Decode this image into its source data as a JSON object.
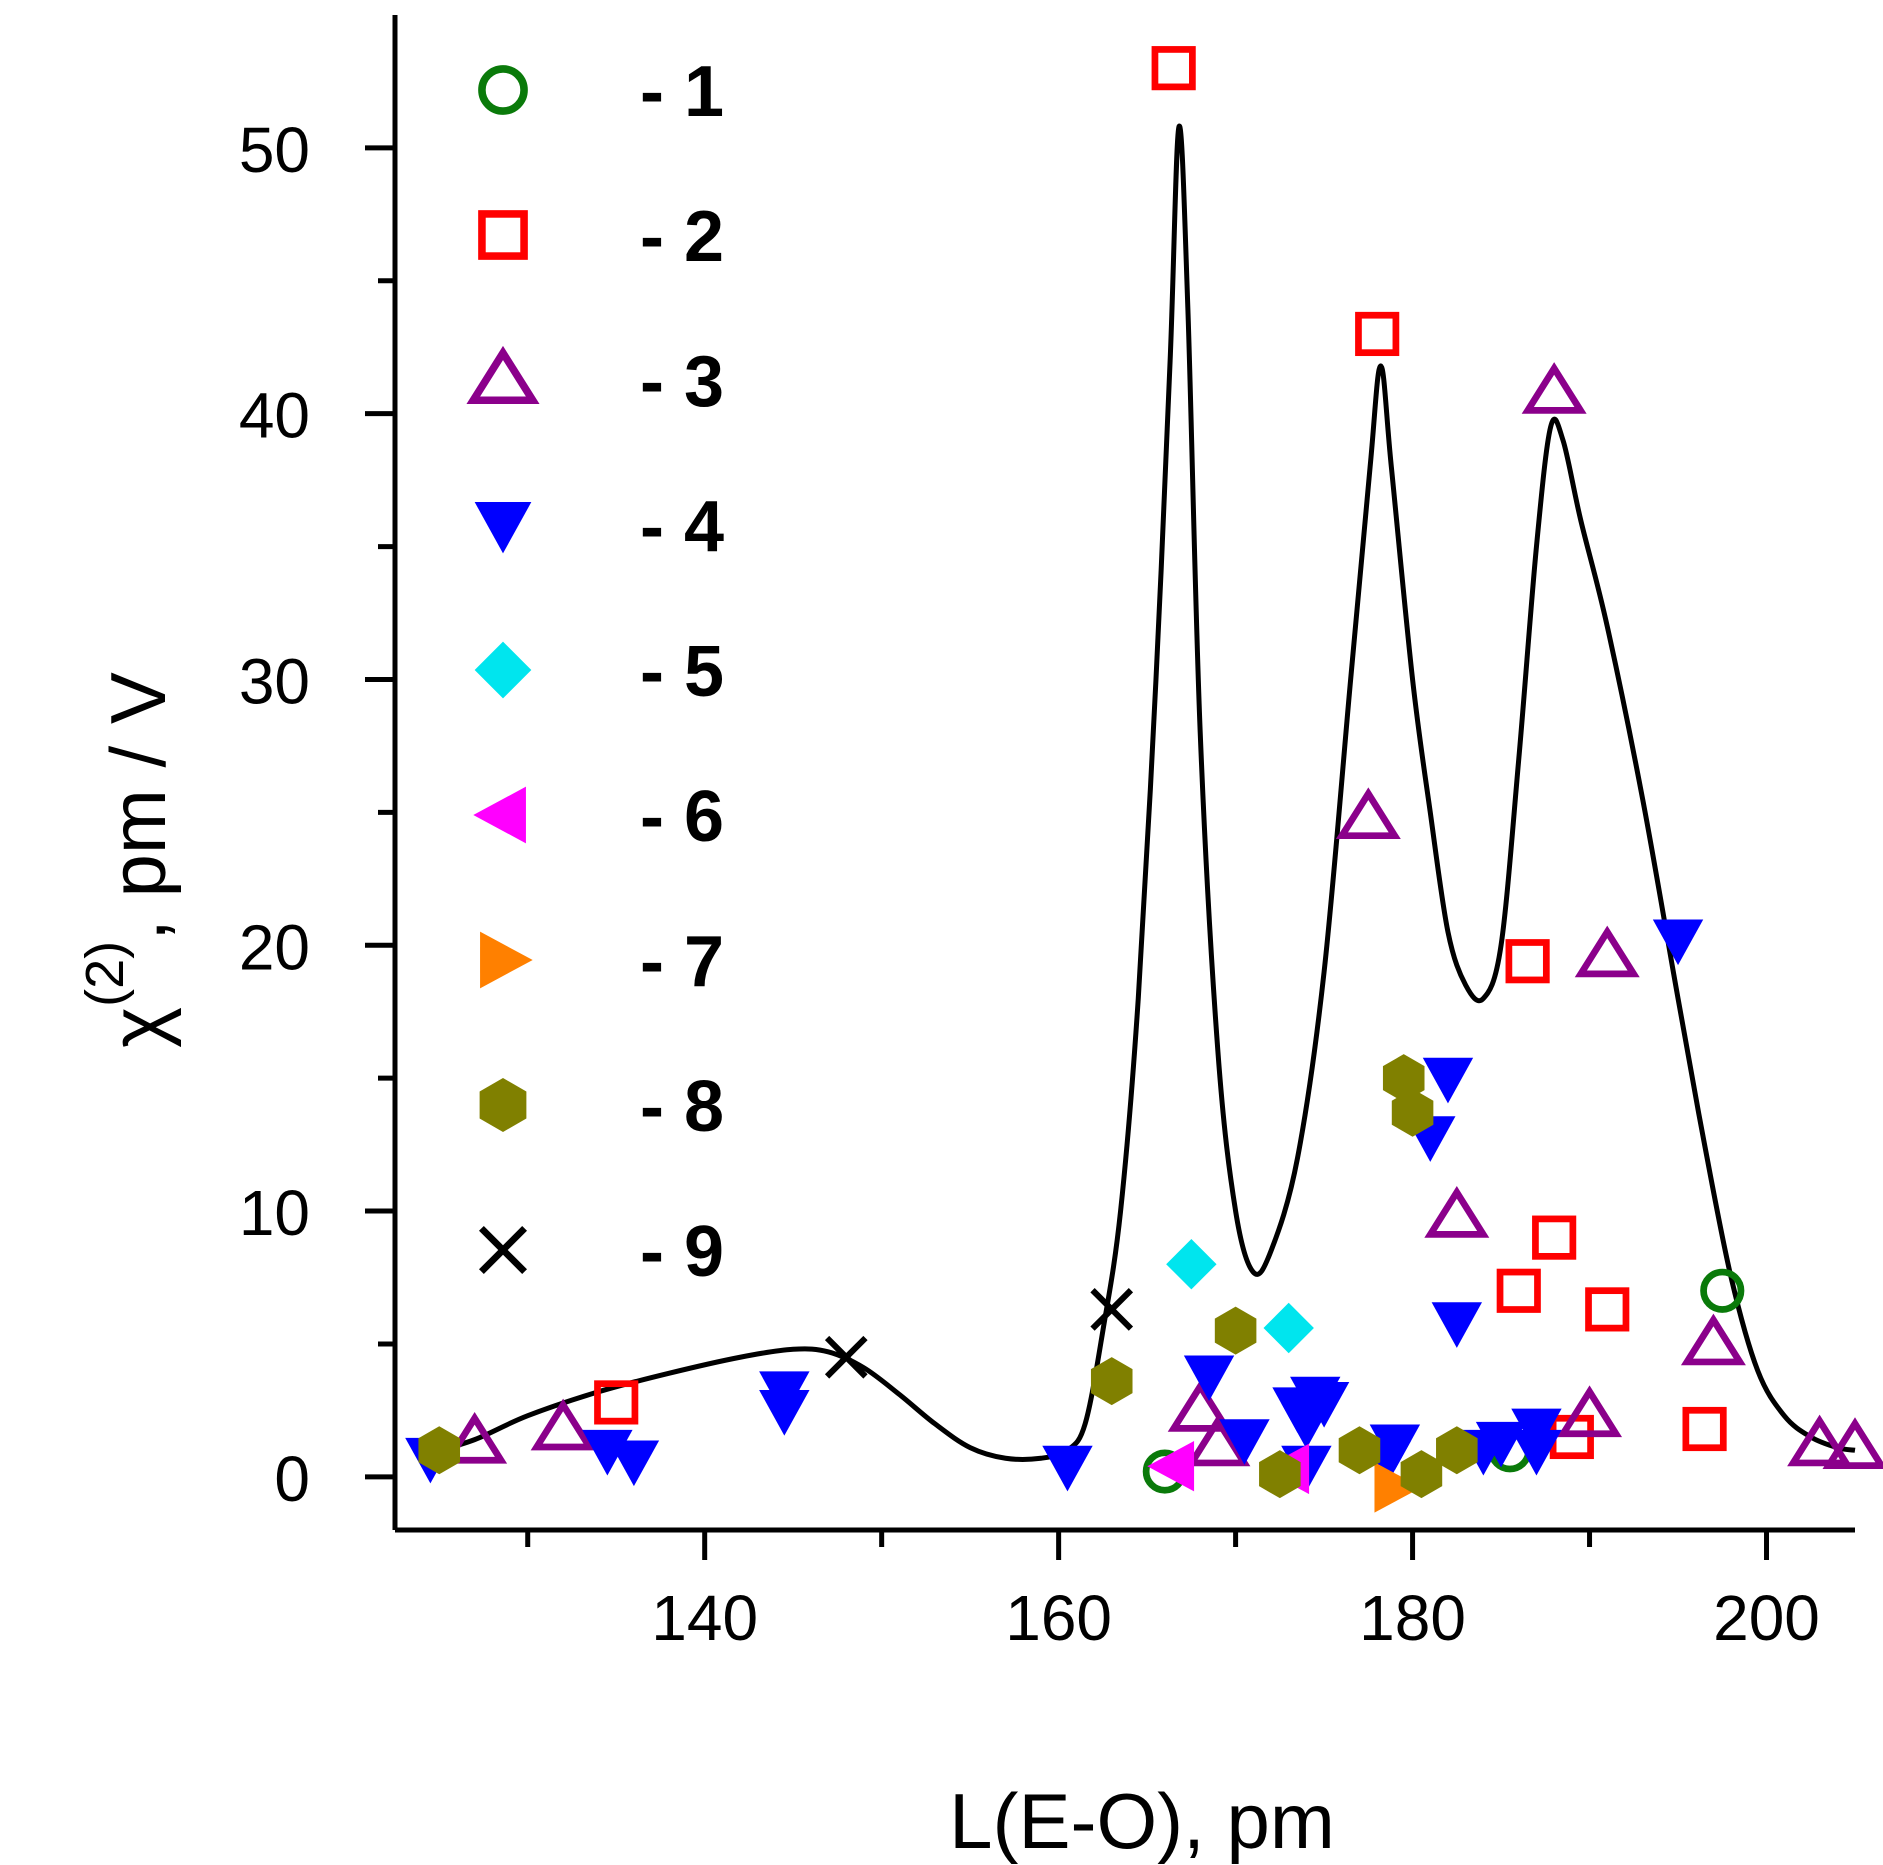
{
  "chart_data": {
    "type": "scatter",
    "xlabel": "L(E-O), pm",
    "ylabel_symbol": "χ",
    "ylabel_superscript": "(2)",
    "ylabel_units": ", pm / V",
    "xlim": [
      122.5,
      205
    ],
    "ylim": [
      -2,
      55
    ],
    "x_major_ticks": [
      140,
      160,
      180,
      200
    ],
    "x_minor_ticks": [
      130,
      150,
      170,
      190
    ],
    "y_major_ticks": [
      0,
      10,
      20,
      30,
      40,
      50
    ],
    "y_minor_ticks": [
      5,
      15,
      25,
      35,
      45
    ],
    "legend_position": "top-left",
    "series": [
      {
        "name": "- 1",
        "marker": "circle-open",
        "color": "#0a7a0a",
        "points": [
          [
            166,
            0.2
          ],
          [
            185.5,
            1.0
          ],
          [
            197.5,
            7.0
          ]
        ]
      },
      {
        "name": "- 2",
        "marker": "square-open",
        "color": "#ff0000",
        "points": [
          [
            135,
            2.8
          ],
          [
            166.5,
            53.0
          ],
          [
            178,
            43.0
          ],
          [
            186,
            7.0
          ],
          [
            186.5,
            19.4
          ],
          [
            188,
            9.0
          ],
          [
            189,
            1.5
          ],
          [
            191,
            6.3
          ],
          [
            196.5,
            1.8
          ]
        ]
      },
      {
        "name": "- 3",
        "marker": "triangle-up-open",
        "color": "#8b008b",
        "points": [
          [
            127,
            1.3
          ],
          [
            132,
            1.8
          ],
          [
            168,
            2.5
          ],
          [
            169,
            1.2
          ],
          [
            177.5,
            24.8
          ],
          [
            182.5,
            9.8
          ],
          [
            188,
            40.8
          ],
          [
            190,
            2.3
          ],
          [
            191,
            19.6
          ],
          [
            197,
            5.0
          ],
          [
            203,
            1.2
          ],
          [
            205,
            1.1
          ]
        ]
      },
      {
        "name": "- 4",
        "marker": "triangle-down-filled",
        "color": "#0000ff",
        "points": [
          [
            124.5,
            0.7
          ],
          [
            134.5,
            1.0
          ],
          [
            136,
            0.6
          ],
          [
            144.5,
            2.5
          ],
          [
            144.5,
            3.2
          ],
          [
            160.5,
            0.4
          ],
          [
            168.5,
            3.8
          ],
          [
            170.5,
            1.4
          ],
          [
            173.5,
            2.6
          ],
          [
            174,
            2.0
          ],
          [
            174,
            0.4
          ],
          [
            174.5,
            3.0
          ],
          [
            175,
            2.8
          ],
          [
            178.5,
            0.6
          ],
          [
            179,
            1.2
          ],
          [
            181,
            12.8
          ],
          [
            182,
            15.0
          ],
          [
            182.5,
            5.8
          ],
          [
            184,
            1.0
          ],
          [
            185,
            1.3
          ],
          [
            187,
            1.8
          ],
          [
            187,
            1.0
          ],
          [
            195,
            20.2
          ]
        ]
      },
      {
        "name": "- 5",
        "marker": "diamond-filled",
        "color": "#00e5ee",
        "points": [
          [
            167.5,
            8.0
          ],
          [
            173,
            5.6
          ]
        ]
      },
      {
        "name": "- 6",
        "marker": "triangle-left-filled",
        "color": "#ff00ff",
        "points": [
          [
            166.5,
            0.4
          ],
          [
            173,
            0.3
          ]
        ]
      },
      {
        "name": "- 7",
        "marker": "triangle-right-filled",
        "color": "#ff8000",
        "points": [
          [
            179,
            -0.4
          ]
        ]
      },
      {
        "name": "- 8",
        "marker": "hexagon-filled",
        "color": "#808000",
        "points": [
          [
            125,
            1.0
          ],
          [
            163,
            3.6
          ],
          [
            170,
            5.5
          ],
          [
            172.5,
            0.1
          ],
          [
            177,
            1.0
          ],
          [
            179.5,
            15.0
          ],
          [
            180,
            13.7
          ],
          [
            180.5,
            0.1
          ],
          [
            182.5,
            1.0
          ]
        ]
      },
      {
        "name": "- 9",
        "marker": "x",
        "color": "#000000",
        "points": [
          [
            148,
            4.5
          ],
          [
            163,
            6.3
          ]
        ]
      }
    ],
    "fit_curve": {
      "name": "fit",
      "color": "#000000",
      "points": [
        [
          124.5,
          0.9
        ],
        [
          127,
          1.4
        ],
        [
          130,
          2.3
        ],
        [
          134,
          3.2
        ],
        [
          138,
          3.9
        ],
        [
          142,
          4.5
        ],
        [
          145,
          4.8
        ],
        [
          147,
          4.7
        ],
        [
          149,
          4.1
        ],
        [
          151,
          3.1
        ],
        [
          153,
          2.0
        ],
        [
          155,
          1.1
        ],
        [
          157,
          0.7
        ],
        [
          159,
          0.7
        ],
        [
          160.5,
          1.0
        ],
        [
          161.5,
          2.0
        ],
        [
          162.5,
          5.5
        ],
        [
          163.5,
          10.0
        ],
        [
          164.5,
          18.0
        ],
        [
          165.5,
          30.0
        ],
        [
          166.3,
          42.0
        ],
        [
          166.8,
          50.8
        ],
        [
          167.3,
          44.0
        ],
        [
          168,
          28.0
        ],
        [
          169,
          16.0
        ],
        [
          170,
          10.0
        ],
        [
          171,
          7.7
        ],
        [
          172,
          8.5
        ],
        [
          173.5,
          12.0
        ],
        [
          175,
          19.0
        ],
        [
          176.5,
          30.0
        ],
        [
          177.6,
          38.0
        ],
        [
          178.2,
          41.8
        ],
        [
          178.8,
          38.0
        ],
        [
          180,
          30.0
        ],
        [
          181,
          25.0
        ],
        [
          182,
          20.5
        ],
        [
          183,
          18.5
        ],
        [
          184,
          18.0
        ],
        [
          185,
          20.0
        ],
        [
          186,
          27.0
        ],
        [
          187,
          35.0
        ],
        [
          187.8,
          39.5
        ],
        [
          188.5,
          39.0
        ],
        [
          189.5,
          36.0
        ],
        [
          191,
          32.0
        ],
        [
          193,
          25.5
        ],
        [
          195,
          18.0
        ],
        [
          196.5,
          12.5
        ],
        [
          198,
          7.5
        ],
        [
          199.5,
          4.0
        ],
        [
          201,
          2.3
        ],
        [
          202.5,
          1.5
        ],
        [
          204,
          1.1
        ],
        [
          205,
          1.0
        ]
      ]
    }
  }
}
